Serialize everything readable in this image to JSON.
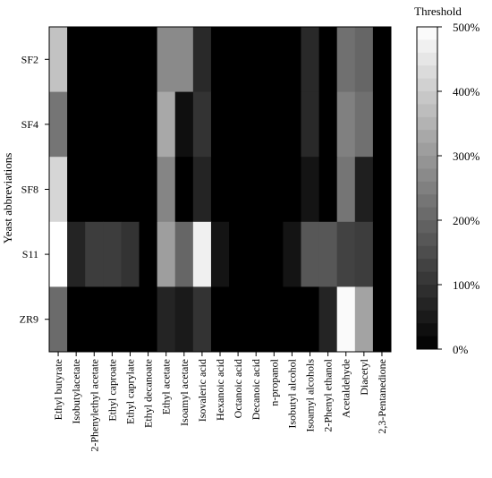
{
  "chart_data": {
    "type": "heatmap",
    "title": "",
    "xlabel": "",
    "ylabel": "Yeast abbreviations",
    "rows": [
      "SF2",
      "SF4",
      "SF8",
      "S11",
      "ZR9"
    ],
    "columns": [
      "Ethyl butyrate",
      "Isobutylacetate",
      "2-Phenylethyl acetate",
      "Ethyl caproate",
      "Ethyl caprylate",
      "Ethyl decanoate",
      "Ethyl acetate",
      "Isoamyl acetate",
      "Isovaleric acid",
      "Hexanoic acid",
      "Octanoic acid",
      "Decanoic acid",
      "n-propanol",
      "Isobutyl alcohol",
      "Isoamyl alcohols",
      "2-Phenyl ethanol",
      "Acetaldehyde",
      "Diacetyl",
      "2,3-Pentanedione"
    ],
    "values": [
      [
        380,
        0,
        0,
        0,
        0,
        0,
        270,
        270,
        80,
        0,
        0,
        0,
        0,
        0,
        80,
        0,
        220,
        200,
        0
      ],
      [
        230,
        0,
        0,
        0,
        0,
        0,
        330,
        30,
        100,
        0,
        0,
        0,
        0,
        0,
        80,
        0,
        250,
        220,
        0
      ],
      [
        420,
        0,
        0,
        0,
        0,
        0,
        260,
        0,
        70,
        0,
        0,
        0,
        0,
        0,
        40,
        0,
        230,
        60,
        0
      ],
      [
        500,
        70,
        120,
        120,
        100,
        0,
        310,
        200,
        470,
        40,
        0,
        0,
        0,
        40,
        170,
        170,
        130,
        120,
        0
      ],
      [
        210,
        0,
        0,
        0,
        0,
        0,
        70,
        50,
        100,
        0,
        0,
        0,
        0,
        0,
        0,
        70,
        490,
        320,
        0
      ]
    ],
    "colorbar": {
      "label": "Threshold",
      "min": 0,
      "max": 500,
      "ticks": [
        0,
        100,
        200,
        300,
        400,
        500
      ],
      "tick_labels": [
        "0%",
        "100%",
        "200%",
        "300%",
        "400%",
        "500%"
      ],
      "colormap": "gray"
    },
    "grid": false
  }
}
